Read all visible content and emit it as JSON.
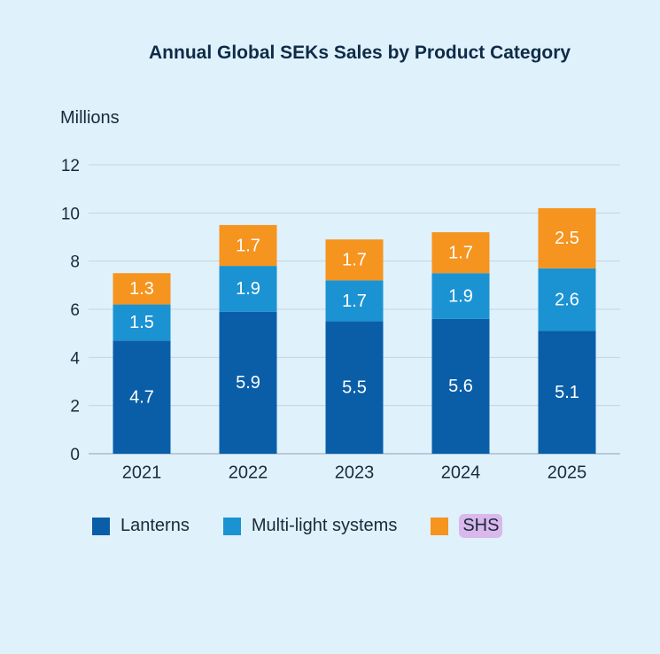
{
  "chart_data": {
    "type": "bar",
    "stacked": true,
    "title": "Annual Global SEKs Sales by Product Category",
    "ylabel": "Millions",
    "xlabel": "",
    "ylim": [
      0,
      12
    ],
    "yticks": [
      0,
      2,
      4,
      6,
      8,
      10,
      12
    ],
    "grid": true,
    "legend_position": "bottom",
    "categories": [
      "2021",
      "2022",
      "2023",
      "2024",
      "2025"
    ],
    "series": [
      {
        "name": "Lanterns",
        "color": "#0a5ea8",
        "values": [
          4.7,
          5.9,
          5.5,
          5.6,
          5.1
        ]
      },
      {
        "name": "Multi-light systems",
        "color": "#1b93d3",
        "values": [
          1.5,
          1.9,
          1.7,
          1.9,
          2.6
        ]
      },
      {
        "name": "SHS",
        "color": "#f5941f",
        "values": [
          1.3,
          1.7,
          1.7,
          1.7,
          2.5
        ]
      }
    ]
  }
}
